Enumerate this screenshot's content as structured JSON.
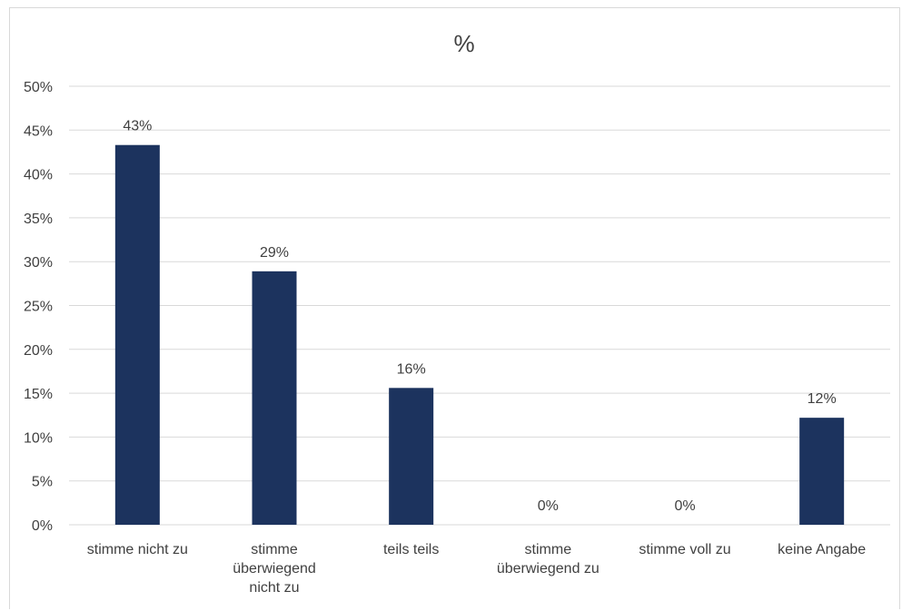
{
  "chart_data": {
    "type": "bar",
    "title": "%",
    "categories": [
      [
        "stimme nicht zu"
      ],
      [
        "stimme",
        "überwiegend",
        "nicht zu"
      ],
      [
        "teils teils"
      ],
      [
        "stimme",
        "überwiegend zu"
      ],
      [
        "stimme voll zu"
      ],
      [
        "keine Angabe"
      ]
    ],
    "values": [
      43.3,
      28.9,
      15.6,
      0,
      0,
      12.2
    ],
    "data_labels": [
      "43%",
      "29%",
      "16%",
      "0%",
      "0%",
      "12%"
    ],
    "ylim": [
      0,
      50
    ],
    "yticks": [
      "0%",
      "5%",
      "10%",
      "15%",
      "20%",
      "25%",
      "30%",
      "35%",
      "40%",
      "45%",
      "50%"
    ],
    "grid": true,
    "bar_color": "#1c335e",
    "grid_color": "#d9d9d9"
  }
}
